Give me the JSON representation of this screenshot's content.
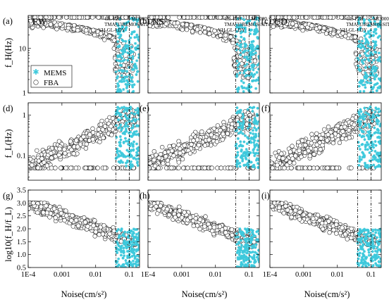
{
  "figure": {
    "row_ylabels": [
      "f_H(Hz)",
      "f_L(Hz)",
      "log10(f_H/f_L)"
    ],
    "xlabel": "Noise(cm/s²)",
    "legend": {
      "mems": "MEMS",
      "fba": "FBA",
      "placement": "bottom-left of panel (a)"
    },
    "colors": {
      "mems": "#3ec9dc",
      "fba": "#ffffff",
      "outline": "#222222"
    }
  },
  "chart_data": [
    {
      "id": "a",
      "panel_label": "(a)",
      "component": "EW",
      "type": "scatter",
      "ylabel": "f_H(Hz)",
      "xscale": "log",
      "yscale": "log",
      "xlim": [
        0.0001,
        0.2
      ],
      "ylim": [
        1,
        55
      ],
      "yticks": [
        "1",
        "10"
      ],
      "xticks": [],
      "annotations": [
        "GL-P2B",
        "TMA-33",
        "VH-GL-LDY",
        "MI3000",
        "REMOS-SIT4"
      ],
      "noise_levels": [
        0.04,
        0.1
      ],
      "series": [
        {
          "name": "MEMS",
          "noise_range": [
            0.04,
            0.2
          ],
          "y_range": [
            1,
            50
          ]
        },
        {
          "name": "FBA",
          "noise_range": [
            0.0001,
            0.15
          ],
          "y_range": [
            1.5,
            50
          ]
        }
      ]
    },
    {
      "id": "b",
      "panel_label": "(b)",
      "component": "NS",
      "type": "scatter",
      "ylabel": "",
      "xscale": "log",
      "yscale": "log",
      "xlim": [
        0.0001,
        0.2
      ],
      "ylim": [
        1,
        55
      ],
      "yticks": [],
      "xticks": [],
      "annotations": [
        "GL-P2B",
        "TMA-33",
        "VH-GL-LDY",
        "MI3000",
        "REMOS-SIT4"
      ],
      "noise_levels": [
        0.04,
        0.1
      ],
      "series": [
        {
          "name": "MEMS",
          "noise_range": [
            0.04,
            0.2
          ],
          "y_range": [
            1,
            50
          ]
        },
        {
          "name": "FBA",
          "noise_range": [
            0.0001,
            0.15
          ],
          "y_range": [
            1.5,
            50
          ]
        }
      ]
    },
    {
      "id": "c",
      "panel_label": "(c)",
      "component": "UD",
      "type": "scatter",
      "ylabel": "",
      "xscale": "log",
      "yscale": "log",
      "xlim": [
        0.0001,
        0.2
      ],
      "ylim": [
        1,
        55
      ],
      "yticks": [],
      "xticks": [],
      "annotations": [
        "GL-P2B",
        "TMA-33",
        "VH-GL-LDY",
        "MI3000",
        "REMOS-SIT4"
      ],
      "noise_levels": [
        0.04,
        0.1
      ],
      "series": [
        {
          "name": "MEMS",
          "noise_range": [
            0.04,
            0.2
          ],
          "y_range": [
            1,
            50
          ]
        },
        {
          "name": "FBA",
          "noise_range": [
            0.0001,
            0.15
          ],
          "y_range": [
            1.5,
            50
          ]
        }
      ]
    },
    {
      "id": "d",
      "panel_label": "(d)",
      "component": "",
      "type": "scatter",
      "ylabel": "f_L(Hz)",
      "xscale": "log",
      "yscale": "log",
      "xlim": [
        0.0001,
        0.2
      ],
      "ylim": [
        0.025,
        2
      ],
      "yticks": [
        "0.1",
        "1"
      ],
      "xticks": [],
      "annotations": [],
      "noise_levels": [
        0.04,
        0.1
      ],
      "series": [
        {
          "name": "MEMS",
          "noise_range": [
            0.04,
            0.2
          ],
          "y_range": [
            0.05,
            1.6
          ]
        },
        {
          "name": "FBA",
          "noise_range": [
            0.0001,
            0.15
          ],
          "y_range": [
            0.05,
            1.5
          ]
        }
      ]
    },
    {
      "id": "e",
      "panel_label": "(e)",
      "component": "",
      "type": "scatter",
      "ylabel": "",
      "xscale": "log",
      "yscale": "log",
      "xlim": [
        0.0001,
        0.2
      ],
      "ylim": [
        0.025,
        2
      ],
      "yticks": [],
      "xticks": [],
      "annotations": [],
      "noise_levels": [
        0.04,
        0.1
      ],
      "series": [
        {
          "name": "MEMS",
          "noise_range": [
            0.04,
            0.2
          ],
          "y_range": [
            0.05,
            1.6
          ]
        },
        {
          "name": "FBA",
          "noise_range": [
            0.0001,
            0.15
          ],
          "y_range": [
            0.05,
            1.5
          ]
        }
      ]
    },
    {
      "id": "f",
      "panel_label": "(f)",
      "component": "",
      "type": "scatter",
      "ylabel": "",
      "xscale": "log",
      "yscale": "log",
      "xlim": [
        0.0001,
        0.2
      ],
      "ylim": [
        0.025,
        2
      ],
      "yticks": [],
      "xticks": [],
      "annotations": [],
      "noise_levels": [
        0.04,
        0.1
      ],
      "series": [
        {
          "name": "MEMS",
          "noise_range": [
            0.04,
            0.2
          ],
          "y_range": [
            0.05,
            1.6
          ]
        },
        {
          "name": "FBA",
          "noise_range": [
            0.0001,
            0.15
          ],
          "y_range": [
            0.05,
            1.5
          ]
        }
      ]
    },
    {
      "id": "g",
      "panel_label": "(g)",
      "component": "",
      "type": "scatter",
      "ylabel": "log10(f_H/f_L)",
      "xscale": "log",
      "yscale": "linear",
      "xlim": [
        0.0001,
        0.2
      ],
      "ylim": [
        0.5,
        3.5
      ],
      "yticks": [
        "0.5",
        "1.0",
        "1.5",
        "2.0",
        "2.5",
        "3.0",
        "3.5"
      ],
      "xticks": [
        "1E-4",
        "0.001",
        "0.01",
        "0.1"
      ],
      "annotations": [],
      "noise_levels": [
        0.04,
        0.1
      ],
      "series": [
        {
          "name": "MEMS",
          "noise_range": [
            0.04,
            0.2
          ],
          "y_range": [
            0.5,
            2.0
          ]
        },
        {
          "name": "FBA",
          "noise_range": [
            0.0001,
            0.15
          ],
          "y_range": [
            0.6,
            3.0
          ]
        }
      ]
    },
    {
      "id": "h",
      "panel_label": "(h)",
      "component": "",
      "type": "scatter",
      "ylabel": "",
      "xscale": "log",
      "yscale": "linear",
      "xlim": [
        0.0001,
        0.2
      ],
      "ylim": [
        0.5,
        3.5
      ],
      "yticks": [],
      "xticks": [
        "1E-4",
        "0.001",
        "0.01",
        "0.1"
      ],
      "annotations": [],
      "noise_levels": [
        0.04,
        0.1
      ],
      "series": [
        {
          "name": "MEMS",
          "noise_range": [
            0.04,
            0.2
          ],
          "y_range": [
            0.5,
            2.0
          ]
        },
        {
          "name": "FBA",
          "noise_range": [
            0.0001,
            0.15
          ],
          "y_range": [
            0.6,
            3.0
          ]
        }
      ]
    },
    {
      "id": "i",
      "panel_label": "(i)",
      "component": "",
      "type": "scatter",
      "ylabel": "",
      "xscale": "log",
      "yscale": "linear",
      "xlim": [
        0.0001,
        0.2
      ],
      "ylim": [
        0.5,
        3.5
      ],
      "yticks": [],
      "xticks": [
        "1E-4",
        "0.001",
        "0.01",
        "0.1"
      ],
      "annotations": [],
      "noise_levels": [
        0.04,
        0.1
      ],
      "series": [
        {
          "name": "MEMS",
          "noise_range": [
            0.04,
            0.2
          ],
          "y_range": [
            0.5,
            2.0
          ]
        },
        {
          "name": "FBA",
          "noise_range": [
            0.0001,
            0.15
          ],
          "y_range": [
            0.6,
            3.0
          ]
        }
      ]
    }
  ]
}
